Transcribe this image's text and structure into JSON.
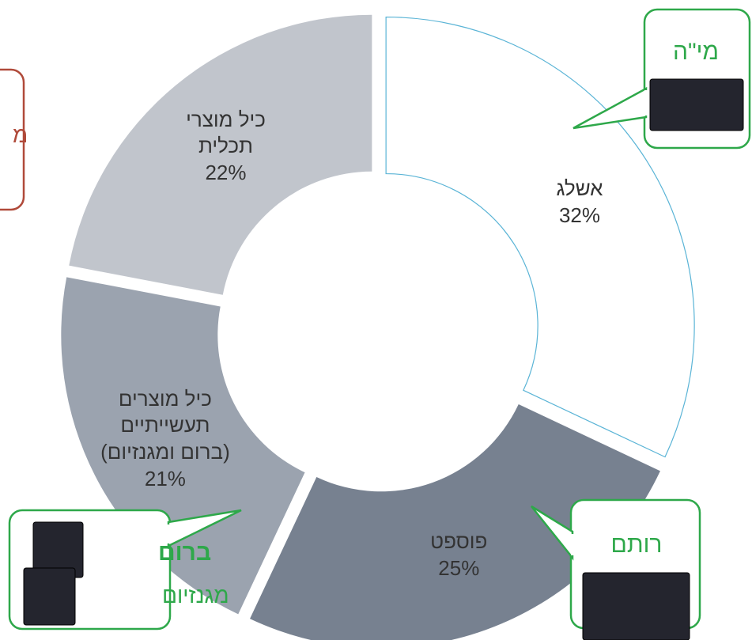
{
  "chart_data": {
    "type": "donut",
    "categories": [
      "אשלג",
      "פוספט",
      "כיל מוצרים תעשייתיים (ברום ומגנזיום)",
      "כיל מוצרי תכלית"
    ],
    "values": [
      32,
      25,
      21,
      22
    ],
    "value_labels": [
      "32%",
      "25%",
      "21%",
      "22%"
    ],
    "colors": [
      "#ffffff",
      "#778190",
      "#9ba3af",
      "#c1c5cc"
    ],
    "callouts": [
      {
        "lines": [
          "מי\"ה"
        ]
      },
      {
        "lines": [
          "רותם"
        ]
      },
      {
        "lines": [
          "ברום",
          "מגנזיום"
        ]
      },
      {
        "lines": [
          "מ"
        ]
      }
    ]
  }
}
